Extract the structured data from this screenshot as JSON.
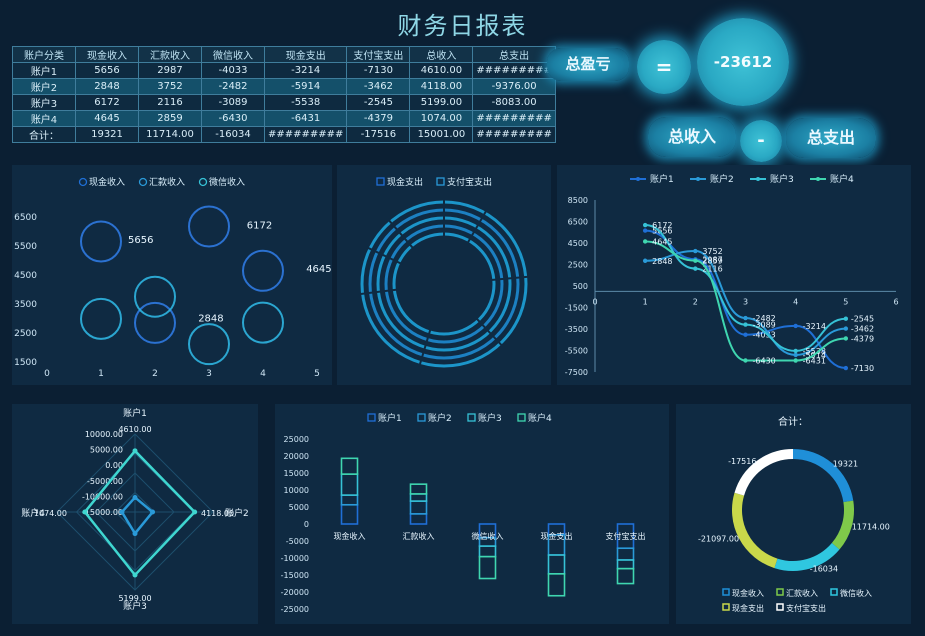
{
  "title": "财务日报表",
  "table": {
    "headers": [
      "账户分类",
      "现金收入",
      "汇款收入",
      "微信收入",
      "现金支出",
      "支付宝支出",
      "总收入",
      "总支出"
    ],
    "rows": [
      [
        "账户1",
        "5656",
        "2987",
        "-4033",
        "-3214",
        "-7130",
        "4610.00",
        "#########"
      ],
      [
        "账户2",
        "2848",
        "3752",
        "-2482",
        "-5914",
        "-3462",
        "4118.00",
        "-9376.00"
      ],
      [
        "账户3",
        "6172",
        "2116",
        "-3089",
        "-5538",
        "-2545",
        "5199.00",
        "-8083.00"
      ],
      [
        "账户4",
        "4645",
        "2859",
        "-6430",
        "-6431",
        "-4379",
        "1074.00",
        "#########"
      ],
      [
        "合计：",
        "19321",
        "11714.00",
        "-16034",
        "#########",
        "-17516",
        "15001.00",
        "#########"
      ]
    ]
  },
  "summary": {
    "profit_label": "总盈亏",
    "equals": "=",
    "profit_value": "-23612",
    "income_label": "总收入",
    "minus": "-",
    "expense_label": "总支出"
  },
  "colors": {
    "series": [
      "#1f6fd6",
      "#2a9ad8",
      "#36c2d6",
      "#3fd6b0"
    ],
    "ring_cash_in": "#1f8fd8",
    "ring_remit": "#7fc94a",
    "ring_wechat": "#2fc7e0",
    "ring_cash_out": "#c9d84a",
    "ring_alipay": "#ffffff"
  },
  "chart_data": [
    {
      "type": "scatter",
      "id": "bubble",
      "legend": [
        "现金收入",
        "汇款收入",
        "微信收入"
      ],
      "xlim": [
        0,
        5
      ],
      "ylim": [
        1500,
        6500
      ],
      "xticks": [
        "0",
        "1",
        "2",
        "3",
        "4",
        "5"
      ],
      "yticks": [
        "1500",
        "2500",
        "3500",
        "4500",
        "5500",
        "6500"
      ],
      "series": [
        {
          "name": "现金收入",
          "points": [
            [
              1,
              5656
            ],
            [
              2,
              2848
            ],
            [
              3,
              6172
            ],
            [
              4,
              4645
            ]
          ]
        },
        {
          "name": "汇款收入",
          "points": [
            [
              1,
              2987
            ],
            [
              2,
              3752
            ],
            [
              3,
              2116
            ],
            [
              4,
              2859
            ]
          ]
        },
        {
          "name": "微信收入",
          "points": []
        }
      ],
      "labels": [
        {
          "text": "5656",
          "x": 1.5,
          "y": 5600
        },
        {
          "text": "6172",
          "x": 3.7,
          "y": 6100
        },
        {
          "text": "4645",
          "x": 4.8,
          "y": 4600
        },
        {
          "text": "2848",
          "x": 2.8,
          "y": 2900
        }
      ]
    },
    {
      "type": "pie",
      "id": "rings",
      "legend": [
        "现金支出",
        "支付宝支出"
      ],
      "series": [
        {
          "name": "现金支出",
          "values": [
            3214,
            5914,
            5538,
            6431
          ]
        },
        {
          "name": "支付宝支出",
          "values": [
            7130,
            3462,
            2545,
            4379
          ]
        }
      ]
    },
    {
      "type": "line",
      "id": "lines",
      "legend": [
        "账户1",
        "账户2",
        "账户3",
        "账户4"
      ],
      "x": [
        1,
        2,
        3,
        4,
        5
      ],
      "xlim": [
        0,
        6
      ],
      "ylim": [
        -7500,
        8500
      ],
      "yticks": [
        "8500",
        "6500",
        "4500",
        "2500",
        "500",
        "-1500",
        "-3500",
        "-5500",
        "-7500"
      ],
      "xticks": [
        "0",
        "1",
        "2",
        "3",
        "4",
        "5",
        "6"
      ],
      "series": [
        {
          "name": "账户1",
          "values": [
            5656,
            2987,
            -4033,
            -3214,
            -7130
          ]
        },
        {
          "name": "账户2",
          "values": [
            2848,
            3752,
            -2482,
            -5914,
            -3462
          ]
        },
        {
          "name": "账户3",
          "values": [
            6172,
            2116,
            -3089,
            -5538,
            -2545
          ]
        },
        {
          "name": "账户4",
          "values": [
            4645,
            2859,
            -6430,
            -6431,
            -4379
          ]
        }
      ]
    },
    {
      "type": "radar",
      "id": "radar",
      "axes": [
        "账户1",
        "账户2",
        "账户3",
        "账户4"
      ],
      "axis_values": [
        "4610.00",
        "4118.00",
        "5199.00",
        "1074.00"
      ],
      "ticks": [
        "10000.00",
        "5000.00",
        "0.00",
        "-5000.00",
        "-10000.00",
        "-15000.00"
      ],
      "range": [
        -15000,
        10000
      ],
      "series": [
        {
          "name": "总收入",
          "values": [
            4610,
            4118,
            5199,
            1074
          ]
        },
        {
          "name": "总支出",
          "values": [
            -10344,
            -9376,
            -8083,
            -10810
          ]
        }
      ]
    },
    {
      "type": "bar",
      "id": "boxes",
      "legend": [
        "账户1",
        "账户2",
        "账户3",
        "账户4"
      ],
      "categories": [
        "现金收入",
        "汇款收入",
        "微信收入",
        "现金支出",
        "支付宝支出"
      ],
      "ylim": [
        -25000,
        25000
      ],
      "yticks": [
        "25000",
        "20000",
        "15000",
        "10000",
        "5000",
        "0",
        "-5000",
        "-10000",
        "-15000",
        "-20000",
        "-25000"
      ],
      "series": [
        {
          "name": "账户1",
          "values": [
            5656,
            2987,
            -4033,
            -3214,
            -7130
          ]
        },
        {
          "name": "账户2",
          "values": [
            2848,
            3752,
            -2482,
            -5914,
            -3462
          ]
        },
        {
          "name": "账户3",
          "values": [
            6172,
            2116,
            -3089,
            -5538,
            -2545
          ]
        },
        {
          "name": "账户4",
          "values": [
            4645,
            2859,
            -6430,
            -6431,
            -4379
          ]
        }
      ]
    },
    {
      "type": "pie",
      "id": "donut",
      "title": "合计：",
      "legend": [
        "现金收入",
        "汇款收入",
        "微信收入",
        "现金支出",
        "支付宝支出"
      ],
      "values": [
        19321,
        11714,
        -16034,
        -21097,
        -17516
      ],
      "labels": [
        "19321",
        "11714.00",
        "-16034",
        "-21097.00",
        "-17516"
      ]
    }
  ]
}
